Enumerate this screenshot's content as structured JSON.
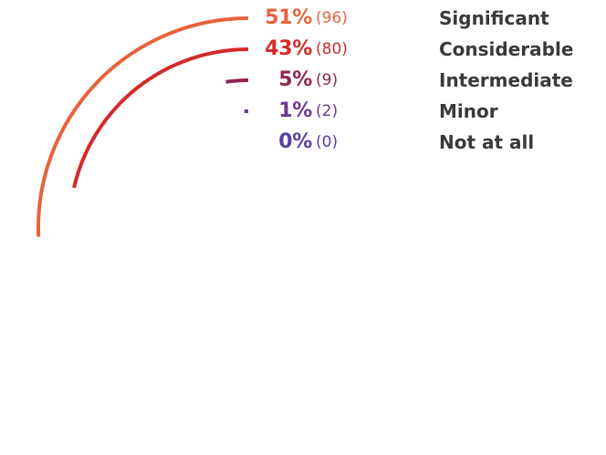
{
  "chart_data": {
    "type": "radial-bar",
    "total": 187,
    "max_value": 187,
    "categories": [
      "Significant",
      "Considerable",
      "Intermediate",
      "Minor",
      "Not at all"
    ],
    "percent_labels": [
      "51%",
      "43%",
      "5%",
      "1%",
      "0%"
    ],
    "count_labels": [
      "(96)",
      "(80)",
      "(9)",
      "(2)",
      "(0)"
    ],
    "values": [
      96,
      80,
      9,
      2,
      0
    ],
    "colors": [
      "#e8623c",
      "#d42a2a",
      "#8f2550",
      "#6d3a8c",
      "#5a3fa0"
    ]
  }
}
